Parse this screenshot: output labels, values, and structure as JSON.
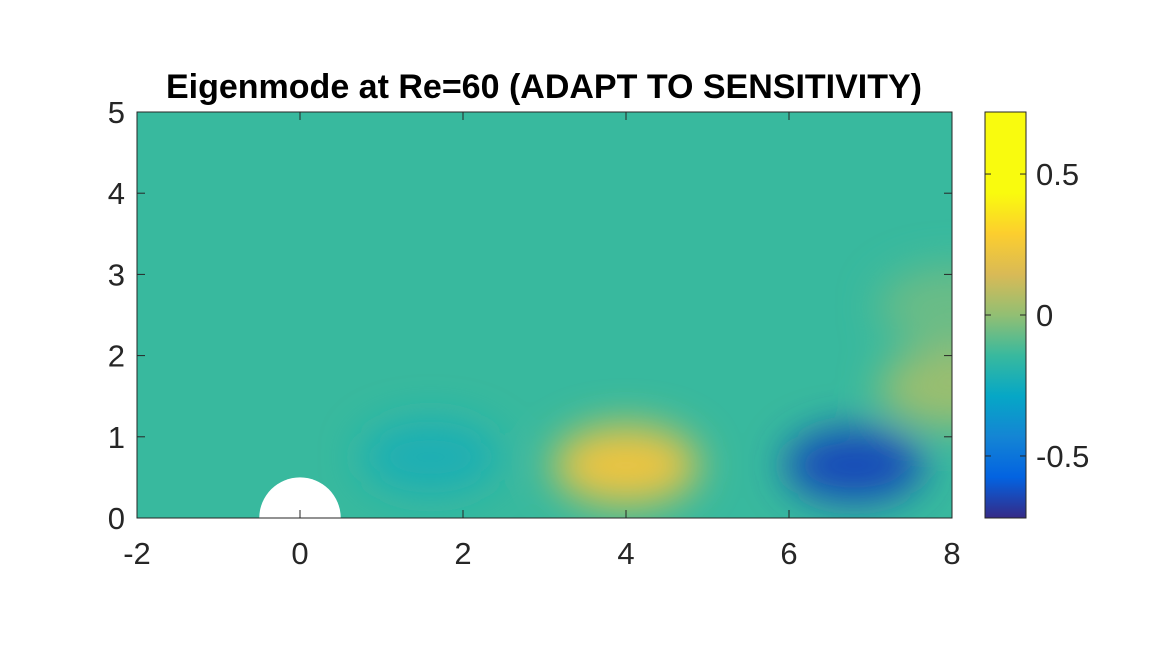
{
  "chart_data": {
    "type": "heatmap",
    "title": "Eigenmode at Re=60 (ADAPT TO SENSITIVITY)",
    "xlabel": "",
    "ylabel": "",
    "xlim": [
      -2,
      8
    ],
    "ylim": [
      0,
      5
    ],
    "x_ticks": [
      -2,
      0,
      2,
      4,
      6,
      8
    ],
    "x_tick_labels": [
      "-2",
      "0",
      "2",
      "4",
      "6",
      "8"
    ],
    "y_ticks": [
      0,
      1,
      2,
      3,
      4,
      5
    ],
    "y_tick_labels": [
      "0",
      "1",
      "2",
      "3",
      "4",
      "5"
    ],
    "colormap": "parula",
    "clim": [
      -0.72,
      0.72
    ],
    "colorbar": {
      "placement": "right",
      "ticks": [
        -0.5,
        0,
        0.5
      ],
      "tick_labels": [
        "-0.5",
        "0",
        "0.5"
      ]
    },
    "background_value": 0,
    "obstacle": {
      "shape": "half-disk",
      "center": [
        0,
        0
      ],
      "radius": 0.5,
      "fill": "#ffffff"
    },
    "features": [
      {
        "type": "negative lobe",
        "x": 1.6,
        "y": 0.75,
        "value": -0.1
      },
      {
        "type": "positive lobe",
        "x": 4.0,
        "y": 0.65,
        "value": 0.45
      },
      {
        "type": "negative lobe",
        "x": 6.8,
        "y": 0.65,
        "value": -0.62
      },
      {
        "type": "positive lobe",
        "x": 8.0,
        "y": 1.6,
        "value": 0.2
      },
      {
        "type": "positive lobe",
        "x": 8.0,
        "y": 2.6,
        "value": 0.1
      }
    ],
    "grid": false,
    "box": true
  }
}
